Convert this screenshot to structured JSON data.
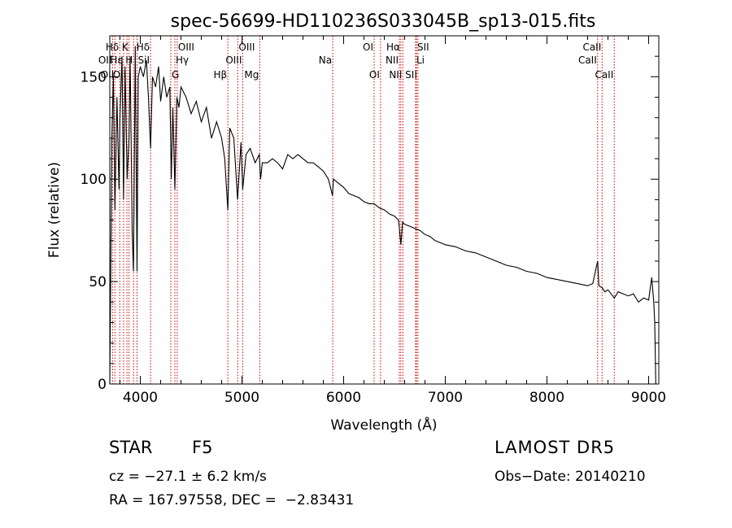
{
  "chart_data": {
    "type": "line",
    "title": "spec-56699-HD110236S033045B_sp13-015.fits",
    "xlabel": "Wavelength (Å)",
    "ylabel": "Flux (relative)",
    "xlim": [
      3700,
      9100
    ],
    "ylim": [
      0,
      170
    ],
    "xticks": [
      4000,
      5000,
      6000,
      7000,
      8000,
      9000
    ],
    "yticks": [
      0,
      50,
      100,
      150
    ],
    "grid": false,
    "line_color": "#000000",
    "marker_color": "#cc0000",
    "series": [
      {
        "x": [
          3700,
          3720,
          3735,
          3750,
          3770,
          3790,
          3800,
          3820,
          3835,
          3850,
          3870,
          3889,
          3900,
          3920,
          3933,
          3950,
          3968,
          3980,
          4000,
          4030,
          4060,
          4080,
          4101,
          4120,
          4150,
          4180,
          4200,
          4230,
          4260,
          4290,
          4305,
          4320,
          4340,
          4360,
          4380,
          4400,
          4450,
          4500,
          4550,
          4600,
          4650,
          4700,
          4750,
          4800,
          4830,
          4861,
          4880,
          4920,
          4957,
          4990,
          5007,
          5040,
          5080,
          5130,
          5170,
          5183,
          5200,
          5250,
          5300,
          5350,
          5400,
          5450,
          5500,
          5550,
          5600,
          5650,
          5700,
          5750,
          5800,
          5850,
          5890,
          5900,
          5950,
          6000,
          6050,
          6100,
          6150,
          6200,
          6250,
          6300,
          6350,
          6400,
          6450,
          6500,
          6540,
          6563,
          6580,
          6600,
          6650,
          6700,
          6750,
          6800,
          6850,
          6900,
          6950,
          7000,
          7100,
          7200,
          7300,
          7400,
          7500,
          7600,
          7700,
          7800,
          7900,
          8000,
          8100,
          8200,
          8300,
          8400,
          8450,
          8498,
          8510,
          8542,
          8570,
          8600,
          8662,
          8700,
          8750,
          8800,
          8850,
          8900,
          8950,
          9000,
          9030,
          9050,
          9060,
          9070
        ],
        "y": [
          0,
          120,
          150,
          85,
          140,
          95,
          130,
          160,
          90,
          155,
          100,
          120,
          160,
          75,
          55,
          165,
          55,
          150,
          155,
          150,
          158,
          140,
          115,
          150,
          145,
          155,
          138,
          150,
          140,
          145,
          100,
          135,
          95,
          140,
          135,
          145,
          140,
          132,
          138,
          128,
          135,
          120,
          128,
          120,
          110,
          85,
          125,
          120,
          90,
          118,
          95,
          112,
          115,
          108,
          112,
          100,
          108,
          108,
          110,
          108,
          105,
          112,
          110,
          112,
          110,
          108,
          108,
          106,
          104,
          100,
          92,
          100,
          98,
          96,
          93,
          92,
          91,
          89,
          88,
          88,
          86,
          85,
          83,
          82,
          80,
          68,
          79,
          78,
          77,
          76,
          75,
          73,
          72,
          70,
          69,
          68,
          67,
          65,
          64,
          62,
          60,
          58,
          57,
          55,
          54,
          52,
          51,
          50,
          49,
          48,
          49,
          60,
          48,
          47,
          45,
          46,
          42,
          45,
          44,
          43,
          44,
          40,
          42,
          41,
          52,
          40,
          30,
          0
        ]
      }
    ],
    "lines": [
      {
        "x": 3727,
        "label": "OII",
        "row": 2,
        "side": "left"
      },
      {
        "x": 3750,
        "label": "OII",
        "row": 3,
        "side": "left"
      },
      {
        "x": 3798,
        "label": "Hδ",
        "row": 1,
        "side": "left"
      },
      {
        "x": 3835,
        "label": "Hε",
        "row": 2,
        "side": "left"
      },
      {
        "x": 3869,
        "label": "OII",
        "row": 3,
        "side": "left"
      },
      {
        "x": 3889,
        "label": "K",
        "row": 1,
        "side": "left"
      },
      {
        "x": 3934,
        "label": "H",
        "row": 2,
        "side": "left"
      },
      {
        "x": 3968,
        "label": "SiI",
        "row": 2,
        "side": "right"
      },
      {
        "x": 4101,
        "label": "Hδ",
        "row": 1,
        "side": "left"
      },
      {
        "x": 4300,
        "label": "G",
        "row": 3,
        "side": "right"
      },
      {
        "x": 4340,
        "label": "Hγ",
        "row": 2,
        "side": "right"
      },
      {
        "x": 4363,
        "label": "OIII",
        "row": 1,
        "side": "right"
      },
      {
        "x": 4861,
        "label": "Hβ",
        "row": 3,
        "side": "left"
      },
      {
        "x": 4959,
        "label": "OIII",
        "row": 1,
        "side": "right"
      },
      {
        "x": 5007,
        "label": "OIII",
        "row": 2,
        "side": "left"
      },
      {
        "x": 5175,
        "label": "Mg",
        "row": 3,
        "side": "left"
      },
      {
        "x": 5893,
        "label": "Na",
        "row": 2,
        "side": "left"
      },
      {
        "x": 6300,
        "label": "OI",
        "row": 1,
        "side": "left"
      },
      {
        "x": 6363,
        "label": "OI",
        "row": 3,
        "side": "left"
      },
      {
        "x": 6548,
        "label": "NII",
        "row": 2,
        "side": "left"
      },
      {
        "x": 6563,
        "label": "Hα",
        "row": 1,
        "side": "left"
      },
      {
        "x": 6583,
        "label": "NII",
        "row": 3,
        "side": "left"
      },
      {
        "x": 6708,
        "label": "Li",
        "row": 2,
        "side": "right"
      },
      {
        "x": 6716,
        "label": "SII",
        "row": 1,
        "side": "right"
      },
      {
        "x": 6731,
        "label": "SII",
        "row": 3,
        "side": "left"
      },
      {
        "x": 8498,
        "label": "CaII",
        "row": 2,
        "side": "left"
      },
      {
        "x": 8542,
        "label": "CaII",
        "row": 1,
        "side": "left"
      },
      {
        "x": 8662,
        "label": "CaII",
        "row": 3,
        "side": "left"
      }
    ]
  },
  "footer": {
    "class": "STAR",
    "subclass": "F5",
    "survey": "LAMOST DR5",
    "cz": "cz = −27.1 ± 6.2 km/s",
    "obs_date": "Obs−Date: 20140210",
    "radec": "RA = 167.97558, DEC =  −2.83431"
  }
}
